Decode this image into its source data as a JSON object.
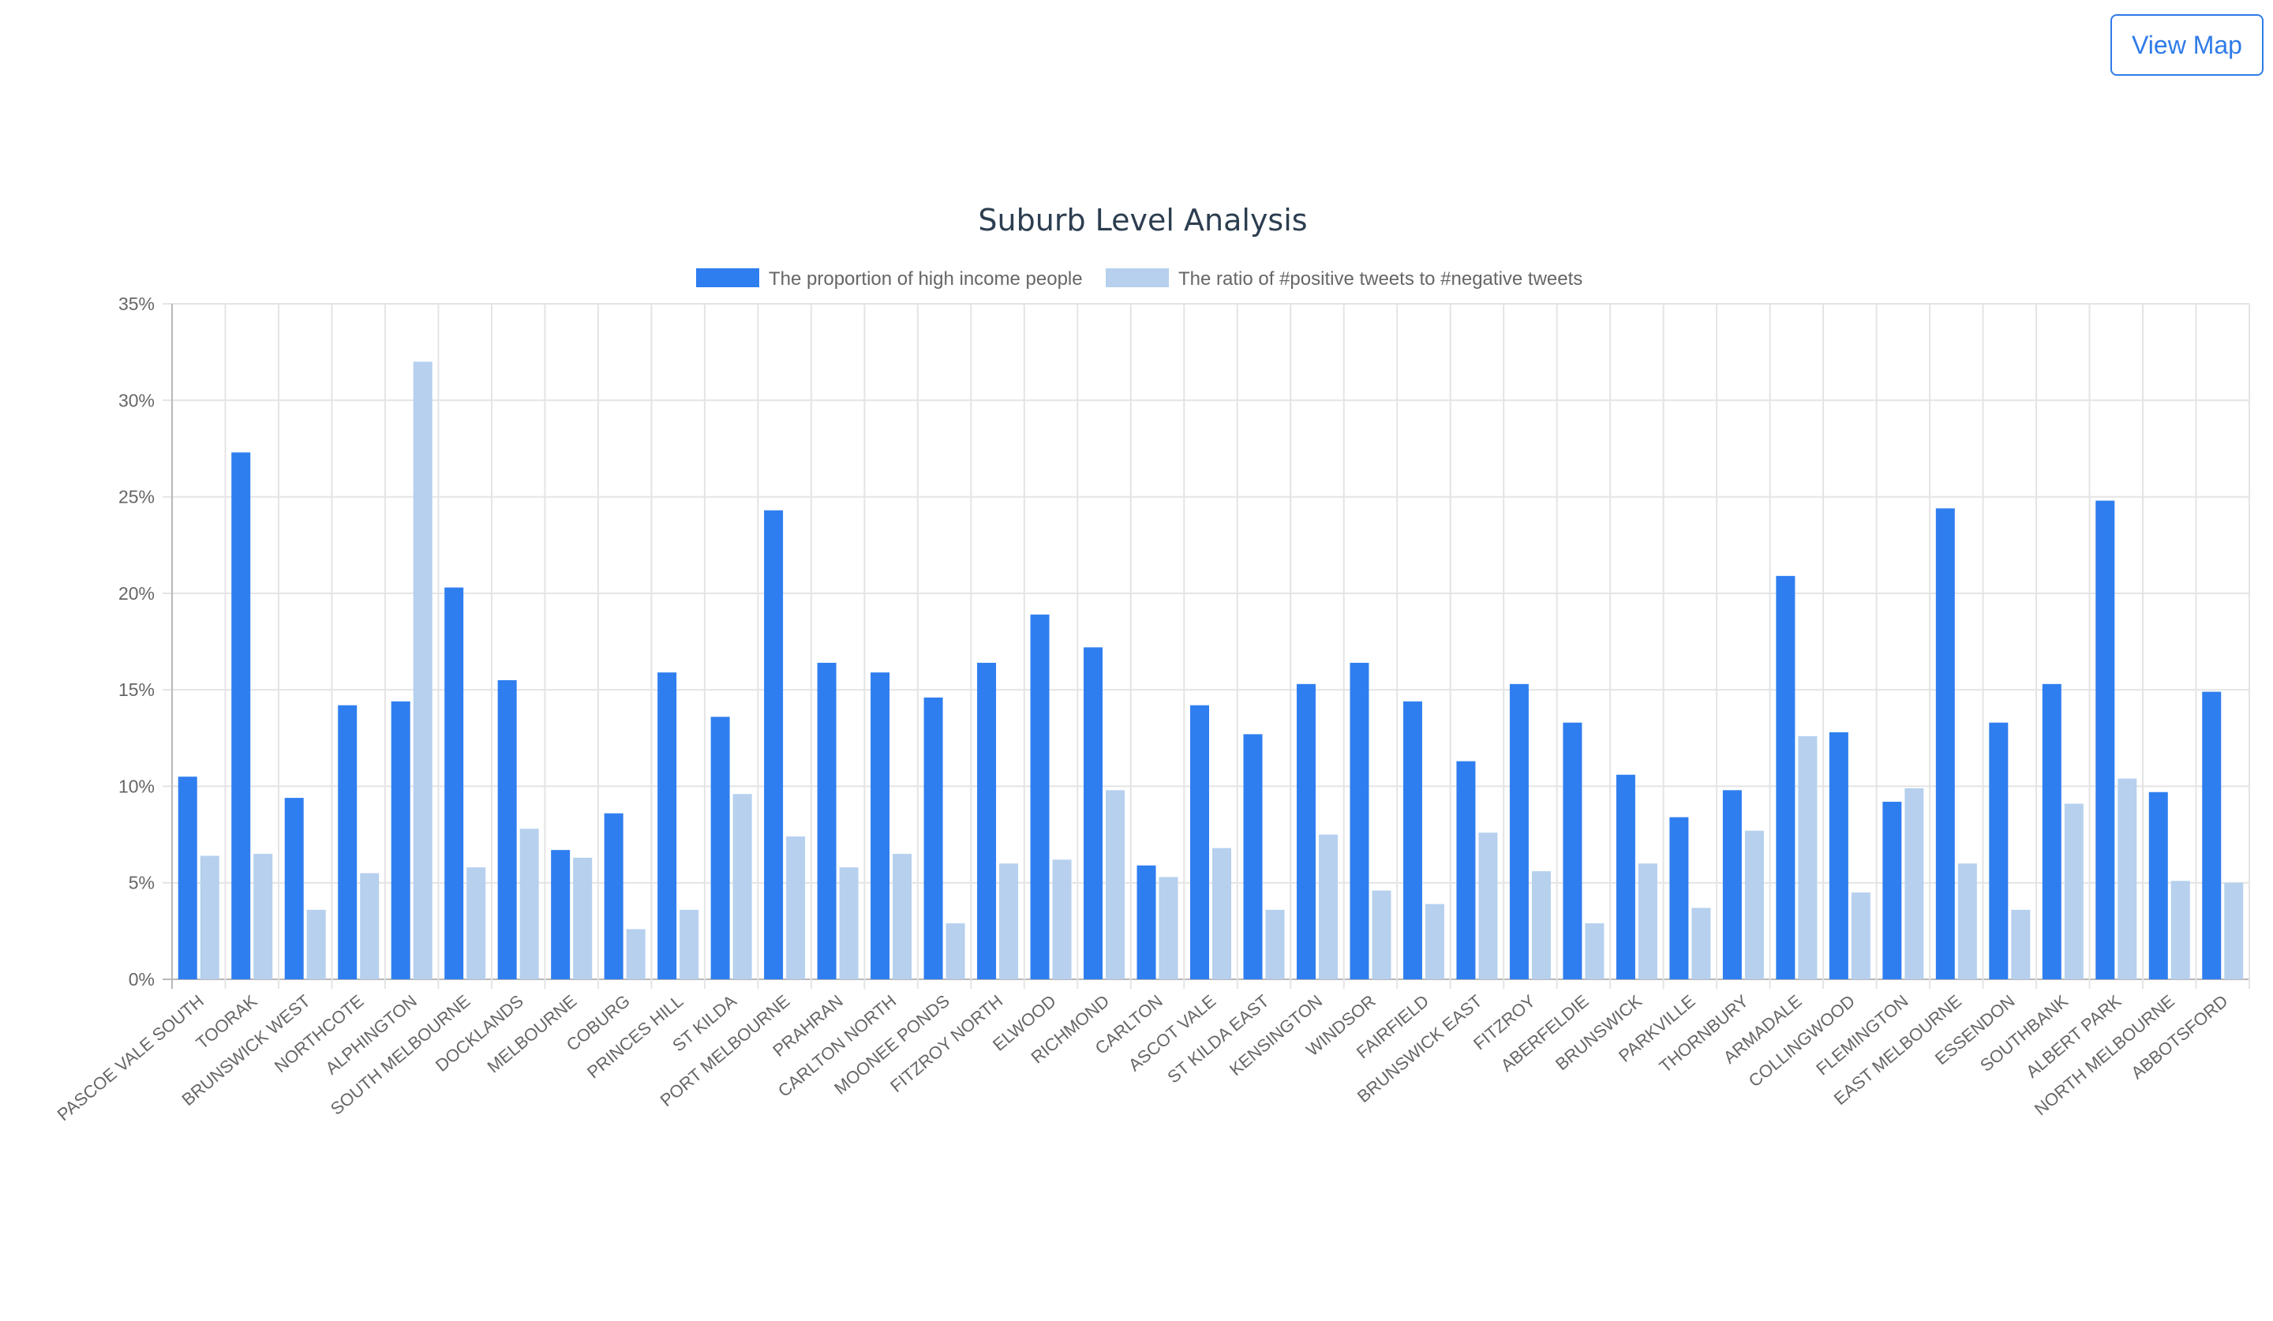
{
  "header": {
    "view_map_label": "View Map"
  },
  "chart_data": {
    "type": "bar",
    "title": "Suburb Level Analysis",
    "xlabel": "",
    "ylabel": "",
    "ylim": [
      0,
      35
    ],
    "y_ticks": [
      "0%",
      "5%",
      "10%",
      "15%",
      "20%",
      "25%",
      "30%",
      "35%"
    ],
    "grid": true,
    "legend_position": "top",
    "categories": [
      "PASCOE VALE SOUTH",
      "TOORAK",
      "BRUNSWICK WEST",
      "NORTHCOTE",
      "ALPHINGTON",
      "SOUTH MELBOURNE",
      "DOCKLANDS",
      "MELBOURNE",
      "COBURG",
      "PRINCES HILL",
      "ST KILDA",
      "PORT MELBOURNE",
      "PRAHRAN",
      "CARLTON NORTH",
      "MOONEE PONDS",
      "FITZROY NORTH",
      "ELWOOD",
      "RICHMOND",
      "CARLTON",
      "ASCOT VALE",
      "ST KILDA EAST",
      "KENSINGTON",
      "WINDSOR",
      "FAIRFIELD",
      "BRUNSWICK EAST",
      "FITZROY",
      "ABERFELDIE",
      "BRUNSWICK",
      "PARKVILLE",
      "THORNBURY",
      "ARMADALE",
      "COLLINGWOOD",
      "FLEMINGTON",
      "EAST MELBOURNE",
      "ESSENDON",
      "SOUTHBANK",
      "ALBERT PARK",
      "NORTH MELBOURNE",
      "ABBOTSFORD"
    ],
    "series": [
      {
        "name": "The proportion of high income people",
        "color": "#2f7ef0",
        "values": [
          10.5,
          27.3,
          9.4,
          14.2,
          14.4,
          20.3,
          15.5,
          6.7,
          8.6,
          15.9,
          13.6,
          24.3,
          16.4,
          15.9,
          14.6,
          16.4,
          18.9,
          17.2,
          5.9,
          14.2,
          12.7,
          15.3,
          16.4,
          14.4,
          11.3,
          15.3,
          13.3,
          10.6,
          8.4,
          9.8,
          20.9,
          12.8,
          9.2,
          24.4,
          13.3,
          15.3,
          24.8,
          9.7,
          14.9
        ]
      },
      {
        "name": "The ratio of #positive tweets to #negative tweets",
        "color": "#b6d0ee",
        "values": [
          6.4,
          6.5,
          3.6,
          5.5,
          32.0,
          5.8,
          7.8,
          6.3,
          2.6,
          3.6,
          9.6,
          7.4,
          5.8,
          6.5,
          2.9,
          6.0,
          6.2,
          9.8,
          5.3,
          6.8,
          3.6,
          7.5,
          4.6,
          3.9,
          7.6,
          5.6,
          2.9,
          6.0,
          3.7,
          7.7,
          12.6,
          4.5,
          9.9,
          6.0,
          3.6,
          9.1,
          10.4,
          5.1,
          5.0
        ]
      }
    ]
  }
}
